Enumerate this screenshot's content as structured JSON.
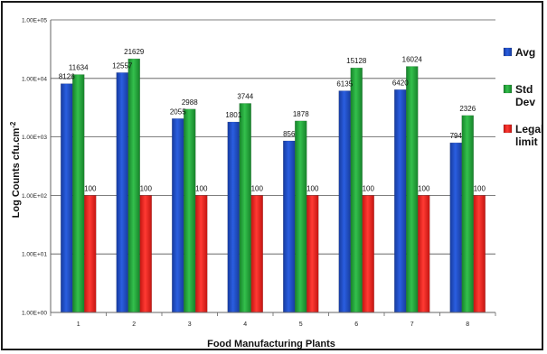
{
  "chart_data": {
    "type": "bar",
    "title": "",
    "xlabel": "Food Manufacturing  Plants",
    "ylabel": "Log Counts cfu.cm-2",
    "yscale": "log",
    "ylim": [
      1,
      100000
    ],
    "yticks": [
      1,
      10,
      100,
      1000,
      10000,
      100000
    ],
    "ytick_labels": [
      "1.00E+00",
      "1.00E+01",
      "1.00E+02",
      "1.00E+03",
      "1.00E+04",
      "1.00E+05"
    ],
    "categories": [
      "1",
      "2",
      "3",
      "4",
      "5",
      "6",
      "7",
      "8"
    ],
    "series": [
      {
        "name": "Avg",
        "color": "#1f4fc8",
        "values": [
          8126,
          12557,
          2055,
          1801,
          856,
          6135,
          6420,
          794
        ]
      },
      {
        "name": "Std Dev",
        "color": "#23a83a",
        "values": [
          11634,
          21629,
          2988,
          3744,
          1878,
          15128,
          16024,
          2326
        ]
      },
      {
        "name": "Legal limit",
        "color": "#e8231f",
        "values": [
          100,
          100,
          100,
          100,
          100,
          100,
          100,
          100
        ]
      }
    ],
    "grid": true,
    "legend_position": "right",
    "legend_labels": [
      [
        "Avg"
      ],
      [
        "Std",
        "Dev"
      ],
      [
        "Legal",
        "limit"
      ]
    ]
  }
}
